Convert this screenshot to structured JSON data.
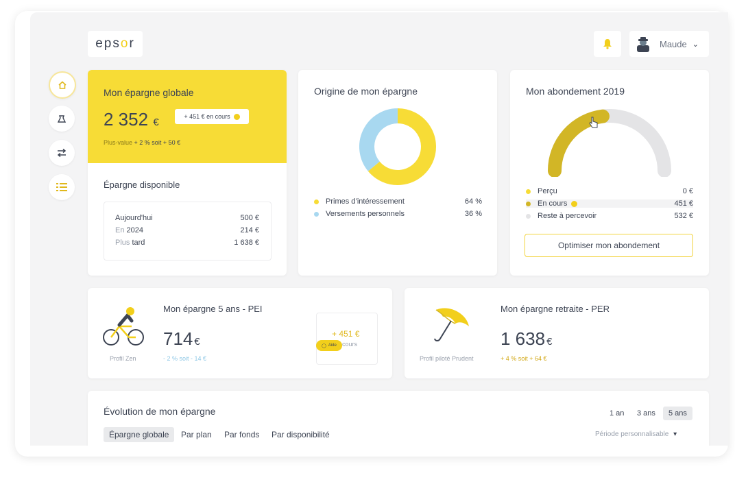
{
  "header": {
    "logo_text_1": "eps",
    "logo_text_2": "o",
    "logo_text_3": "r",
    "user_name": "Maude"
  },
  "global": {
    "title": "Mon épargne globale",
    "amount": "2 352",
    "currency": "€",
    "badge": "+ 451 € en cours",
    "gain_label": "Plus-value",
    "gain_value": "+ 2 % soit + 50 €"
  },
  "available": {
    "title": "Épargne disponible",
    "rows": [
      {
        "label_a": "Aujourd'hui",
        "label_b": "",
        "value": "500 €"
      },
      {
        "label_a": "En",
        "label_b": "2024",
        "value": "214 €"
      },
      {
        "label_a": "Plus",
        "label_b": "tard",
        "value": "1 638 €"
      }
    ]
  },
  "origin": {
    "title": "Origine de mon épargne",
    "legend": [
      {
        "label": "Primes d’intéressement",
        "value": "64 %",
        "color": "#f7dc36"
      },
      {
        "label": "Versements personnels",
        "value": "36 %",
        "color": "#a8d8f0"
      }
    ]
  },
  "chart_data": {
    "type": "pie",
    "title": "Origine de mon épargne",
    "categories": [
      "Primes d’intéressement",
      "Versements personnels"
    ],
    "values": [
      64,
      36
    ]
  },
  "abondement": {
    "title": "Mon abondement 2019",
    "gauge_fraction": 0.46,
    "legend": [
      {
        "label": "Perçu",
        "value": "0 €",
        "color": "#f7dc36"
      },
      {
        "label": "En cours",
        "value": "451 €",
        "color": "#d2b626"
      },
      {
        "label": "Reste à percevoir",
        "value": "532 €",
        "color": "#e4e4e6"
      }
    ],
    "button": "Optimiser mon abondement"
  },
  "pei": {
    "title": "Mon épargne 5 ans - PEI",
    "amount": "714",
    "currency": "€",
    "perf": "- 2 % soit - 14 €",
    "profile": "Profil Zen",
    "pending": "+ 451 €",
    "pending_sub": "cours",
    "help": "Aide"
  },
  "per": {
    "title": "Mon épargne retraite - PER",
    "amount": "1 638",
    "currency": "€",
    "perf": "+ 4 % soit + 64 €",
    "profile": "Profil piloté Prudent"
  },
  "evolution": {
    "title": "Évolution de mon épargne",
    "periods": [
      "1 an",
      "3 ans",
      "5 ans"
    ],
    "tabs": [
      "Épargne globale",
      "Par plan",
      "Par fonds",
      "Par disponibilité"
    ],
    "custom": "Période personnalisable"
  }
}
